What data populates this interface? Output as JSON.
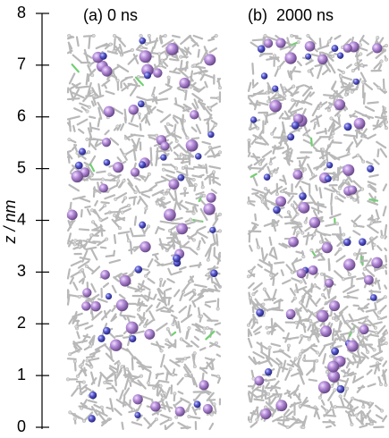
{
  "axis": {
    "label": "z / nm",
    "ylim": [
      0,
      8
    ],
    "yticks": [
      0,
      1,
      2,
      3,
      4,
      5,
      6,
      7,
      8
    ]
  },
  "panels": [
    {
      "label": "(a) 0 ns"
    },
    {
      "label": "(b)  2000 ns"
    }
  ]
}
